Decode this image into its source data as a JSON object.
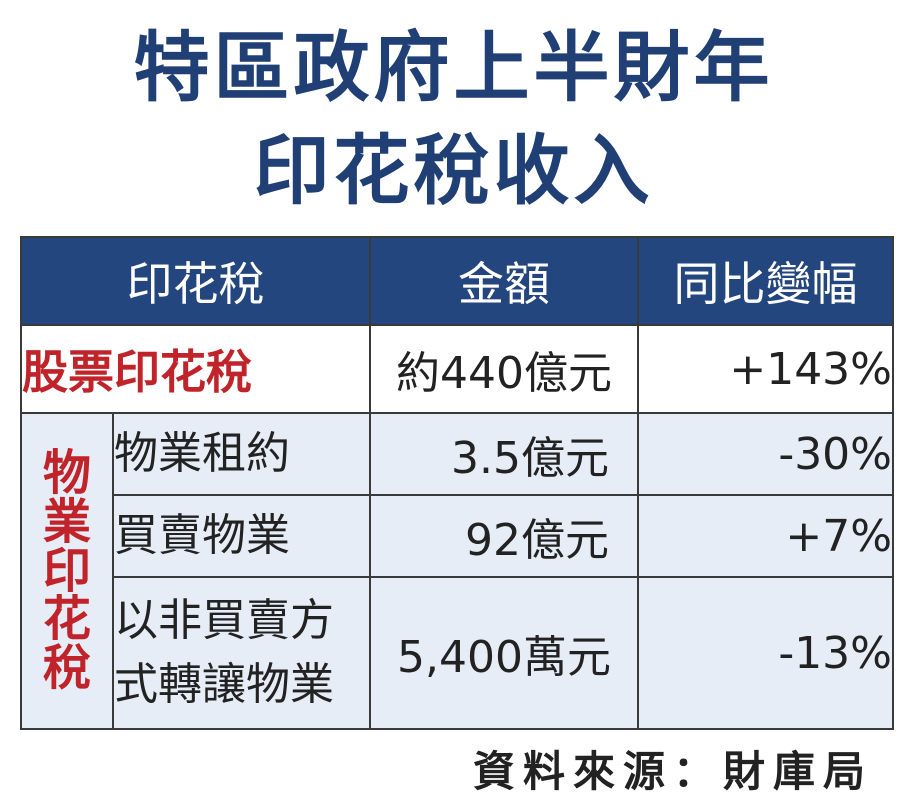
{
  "title": {
    "line1": "特區政府上半財年",
    "line2": "印花稅收入"
  },
  "headers": {
    "col1": "印花稅",
    "col2": "金額",
    "col3": "同比變幅"
  },
  "stock_row": {
    "label": "股票印花稅",
    "amount": "約440億元",
    "change": "+143%"
  },
  "property_group": {
    "label_chars": [
      "物",
      "業",
      "印",
      "花",
      "稅"
    ],
    "rows": [
      {
        "name": "物業租約",
        "amount": "3.5億元",
        "change": "-30%"
      },
      {
        "name": "買賣物業",
        "amount": "92億元",
        "change": "+7%"
      },
      {
        "name_line1": "以非買賣方",
        "name_line2": "式轉讓物業",
        "amount": "5,400萬元",
        "change": "-13%"
      }
    ]
  },
  "footer": "資料來源：財庫局",
  "colors": {
    "title": "#1f3f75",
    "header_bg": "#24467e",
    "label_red": "#c0242a",
    "property_bg": "#e6edf7"
  }
}
